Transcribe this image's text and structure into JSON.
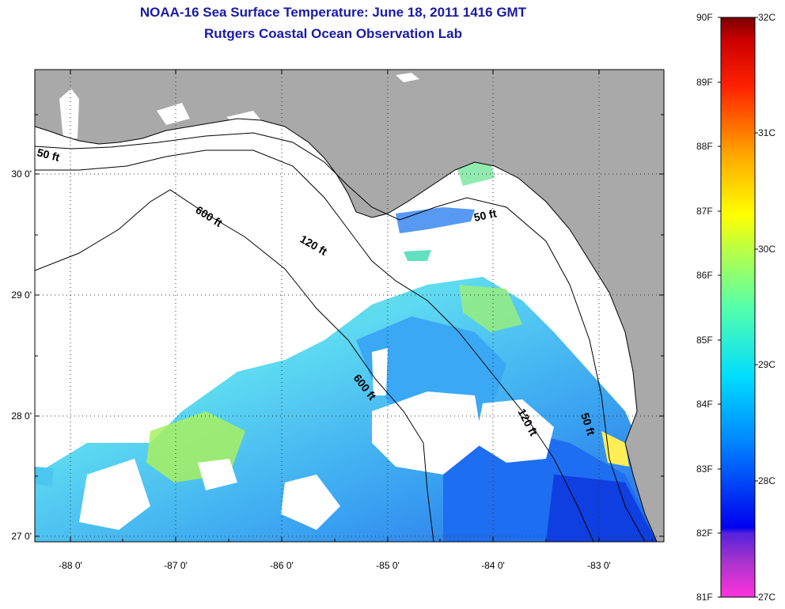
{
  "title": {
    "line1": "NOAA-16 Sea Surface Temperature:  June 18, 2011 1416 GMT",
    "line2": "Rutgers Coastal Ocean Observation Lab"
  },
  "axes": {
    "lat_ticks": [
      "27 0'",
      "28 0'",
      "29 0'",
      "30 0'"
    ],
    "lon_ticks": [
      "-88 0'",
      "-87 0'",
      "-86 0'",
      "-85 0'",
      "-84 0'",
      "-83 0'"
    ]
  },
  "contours": [
    "50 ft",
    "120 ft",
    "600 ft",
    "600 ft",
    "120 ft",
    "50 ft",
    "50 ft"
  ],
  "colorbar": {
    "fahrenheit": [
      "90F",
      "89F",
      "88F",
      "87F",
      "86F",
      "85F",
      "84F",
      "83F",
      "82F",
      "81F"
    ],
    "celsius": [
      "32C",
      "31C",
      "30C",
      "29C",
      "28C",
      "27C"
    ]
  },
  "colors": {
    "title": "#1a1aa6",
    "land": "#a9a9a9",
    "clouds": "#ffffff"
  }
}
